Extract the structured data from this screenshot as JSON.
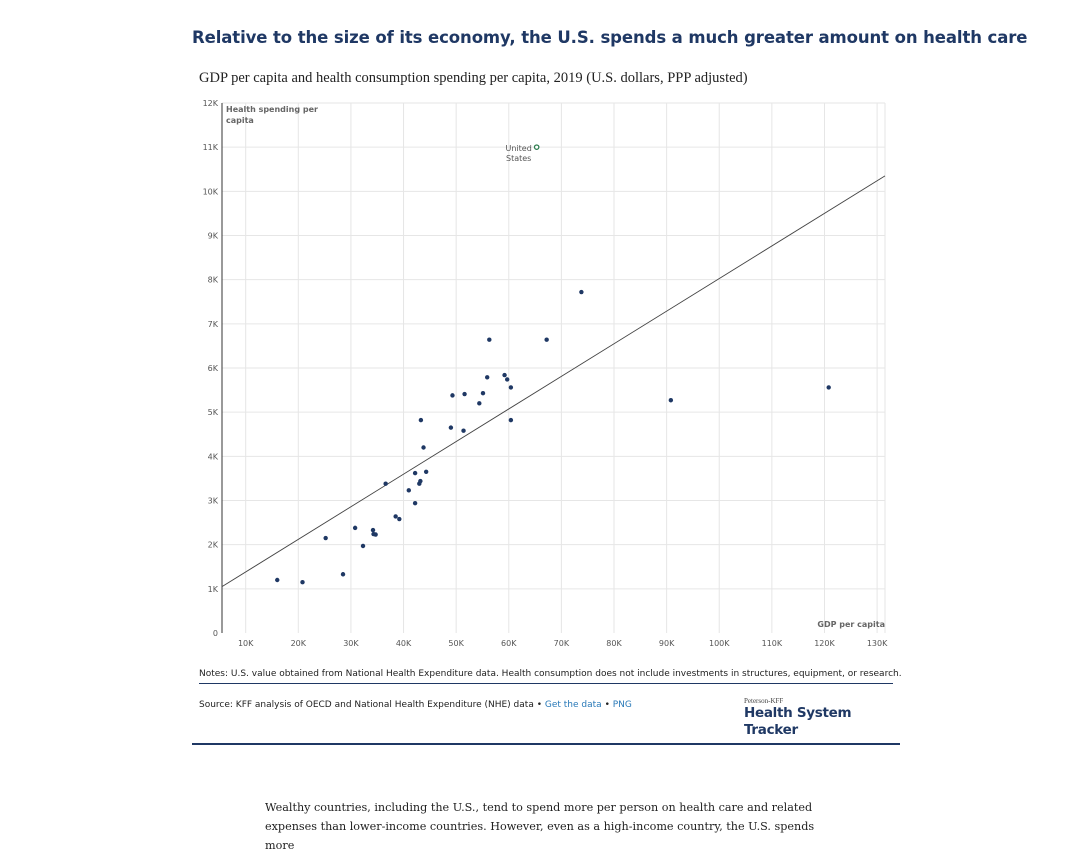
{
  "header": {
    "title": "Relative to the size of its economy, the U.S. spends a much greater amount on health care",
    "subtitle": "GDP per capita and health consumption spending per capita, 2019 (U.S. dollars, PPP adjusted)"
  },
  "chart_data": {
    "type": "scatter",
    "ylabel_lines": [
      "Health spending per",
      "capita"
    ],
    "xlabel": "GDP per capita",
    "xlim": [
      5500,
      131500
    ],
    "ylim": [
      0,
      12000
    ],
    "x_ticks": [
      10000,
      20000,
      30000,
      40000,
      50000,
      60000,
      70000,
      80000,
      90000,
      100000,
      110000,
      120000,
      130000
    ],
    "x_tick_labels": [
      "10K",
      "20K",
      "30K",
      "40K",
      "50K",
      "60K",
      "70K",
      "80K",
      "90K",
      "100K",
      "110K",
      "120K",
      "130K"
    ],
    "y_ticks": [
      0,
      1000,
      2000,
      3000,
      4000,
      5000,
      6000,
      7000,
      8000,
      9000,
      10000,
      11000,
      12000
    ],
    "y_tick_labels": [
      "0",
      "1K",
      "2K",
      "3K",
      "4K",
      "5K",
      "6K",
      "7K",
      "8K",
      "9K",
      "10K",
      "11K",
      "12K"
    ],
    "grid": true,
    "colors": {
      "points": "#1f3864",
      "highlight": "#2e7d4f",
      "trend": "#444444",
      "grid": "#e6e6e6"
    },
    "trend_line": {
      "x": [
        5500,
        131500
      ],
      "y": [
        1050,
        10350
      ]
    },
    "highlight": {
      "label_lines": [
        "United",
        "States"
      ],
      "x": 65300,
      "y": 11000
    },
    "points": [
      {
        "x": 16000,
        "y": 1200
      },
      {
        "x": 20800,
        "y": 1150
      },
      {
        "x": 25200,
        "y": 2150
      },
      {
        "x": 28500,
        "y": 1330
      },
      {
        "x": 30800,
        "y": 2380
      },
      {
        "x": 32300,
        "y": 1970
      },
      {
        "x": 34200,
        "y": 2330
      },
      {
        "x": 34300,
        "y": 2240
      },
      {
        "x": 34700,
        "y": 2230
      },
      {
        "x": 36600,
        "y": 3380
      },
      {
        "x": 38500,
        "y": 2640
      },
      {
        "x": 39200,
        "y": 2580
      },
      {
        "x": 41000,
        "y": 3230
      },
      {
        "x": 42200,
        "y": 3620
      },
      {
        "x": 42200,
        "y": 2940
      },
      {
        "x": 43000,
        "y": 3380
      },
      {
        "x": 43200,
        "y": 3440
      },
      {
        "x": 43300,
        "y": 4820
      },
      {
        "x": 43800,
        "y": 4200
      },
      {
        "x": 44300,
        "y": 3650
      },
      {
        "x": 49000,
        "y": 4650
      },
      {
        "x": 49300,
        "y": 5380
      },
      {
        "x": 51400,
        "y": 4580
      },
      {
        "x": 51600,
        "y": 5410
      },
      {
        "x": 54400,
        "y": 5200
      },
      {
        "x": 55100,
        "y": 5430
      },
      {
        "x": 55900,
        "y": 5790
      },
      {
        "x": 56300,
        "y": 6640
      },
      {
        "x": 59200,
        "y": 5840
      },
      {
        "x": 59700,
        "y": 5740
      },
      {
        "x": 60400,
        "y": 5560
      },
      {
        "x": 60400,
        "y": 4820
      },
      {
        "x": 67200,
        "y": 6640
      },
      {
        "x": 73800,
        "y": 7720
      },
      {
        "x": 90800,
        "y": 5270
      },
      {
        "x": 120800,
        "y": 5560
      }
    ]
  },
  "footer": {
    "notes": "Notes: U.S. value obtained from National Health Expenditure data. Health consumption does not include investments in structures, equipment, or research.",
    "source_prefix": "Source: KFF analysis of OECD and National Health Expenditure (NHE) data •",
    "get_data_link": "Get the data",
    "separator": "•",
    "png_link": "PNG",
    "logo_small": "Peterson-KFF",
    "logo_main": "Health System Tracker"
  },
  "article": {
    "paragraph": "Wealthy countries, including the U.S., tend to spend more per person on health care and related expenses than lower-income countries. However, even as a high-income country, the U.S. spends more"
  }
}
